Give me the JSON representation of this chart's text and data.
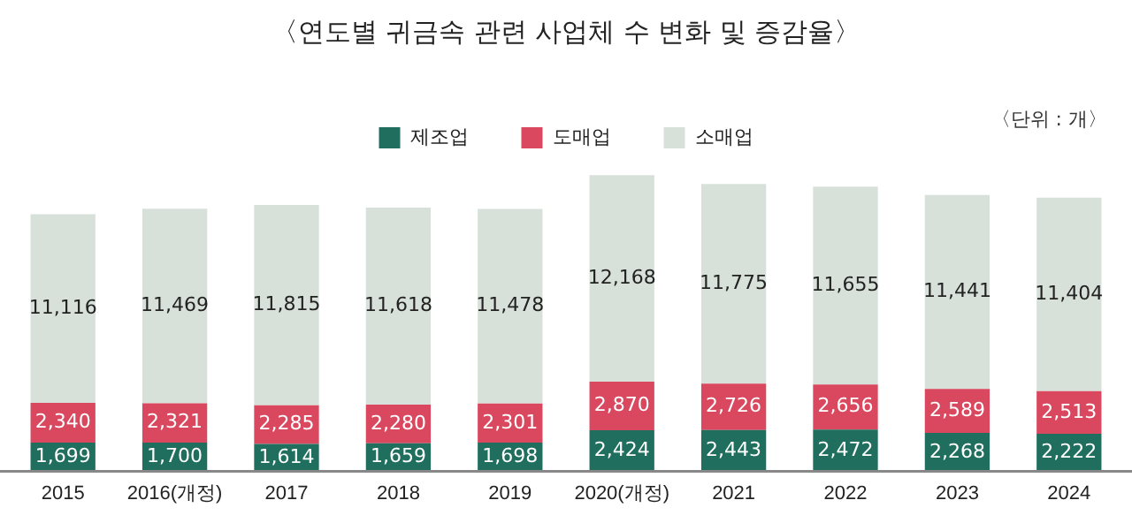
{
  "chart_data": {
    "type": "bar",
    "title": "〈연도별 귀금속 관련 사업체 수 변화 및 증감율〉",
    "annotations": [
      "〈단위 : 개〉"
    ],
    "categories": [
      "2015",
      "2016(개정)",
      "2017",
      "2018",
      "2019",
      "2020(개정)",
      "2021",
      "2022",
      "2023",
      "2024"
    ],
    "stacked": true,
    "legend": "top",
    "tick_labels": "x",
    "series": [
      {
        "name": "제조업",
        "color": "#1f6e5e",
        "values": [
          1699,
          1700,
          1614,
          1659,
          1698,
          2424,
          2443,
          2472,
          2268,
          2222
        ],
        "value_labels": [
          "1,699",
          "1,700",
          "1,614",
          "1,659",
          "1,698",
          "2,424",
          "2,443",
          "2,472",
          "2,268",
          "2,222"
        ]
      },
      {
        "name": "도매업",
        "color": "#d9485e",
        "values": [
          2340,
          2321,
          2285,
          2280,
          2301,
          2870,
          2726,
          2656,
          2589,
          2513
        ],
        "value_labels": [
          "2,340",
          "2,321",
          "2,285",
          "2,280",
          "2,301",
          "2,870",
          "2,726",
          "2,656",
          "2,589",
          "2,513"
        ]
      },
      {
        "name": "소매업",
        "color": "#d8e0da",
        "values": [
          11116,
          11469,
          11815,
          11618,
          11478,
          12168,
          11775,
          11655,
          11441,
          11404
        ],
        "value_labels": [
          "11,116",
          "11,469",
          "11,815",
          "11,618",
          "11,478",
          "12,168",
          "11,775",
          "11,655",
          "11,441",
          "11,404"
        ]
      }
    ]
  }
}
